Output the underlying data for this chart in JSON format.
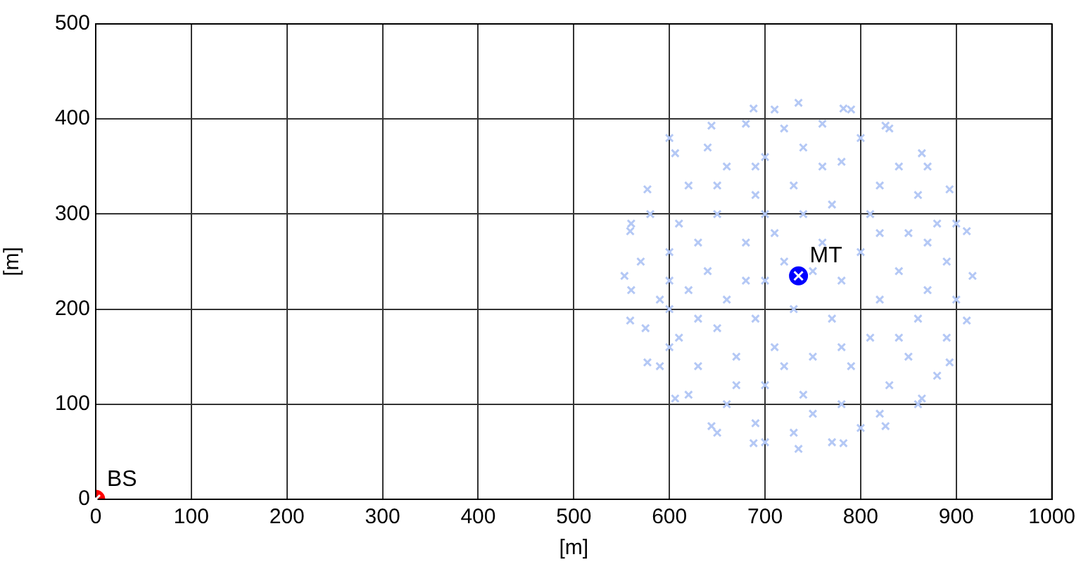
{
  "chart_data": {
    "type": "scatter",
    "xlabel": "[m]",
    "ylabel": "[m]",
    "xlim": [
      0,
      1000
    ],
    "ylim": [
      0,
      500
    ],
    "xticks": [
      0,
      100,
      200,
      300,
      400,
      500,
      600,
      700,
      800,
      900,
      1000
    ],
    "yticks": [
      0,
      100,
      200,
      300,
      400,
      500
    ],
    "grid": true,
    "legend": false,
    "series": [
      {
        "color": "#b4c8f5",
        "marker": "cross",
        "x": [
          917,
          911,
          893,
          864,
          826,
          782,
          735,
          688,
          644,
          606,
          577,
          559,
          553,
          559,
          577,
          606,
          644,
          688,
          735,
          782,
          826,
          864,
          893,
          911,
          600,
          640,
          680,
          720,
          760,
          800,
          840,
          620,
          660,
          700,
          740,
          780,
          820,
          860,
          880,
          580,
          610,
          650,
          690,
          730,
          770,
          810,
          850,
          890,
          570,
          600,
          640,
          680,
          710,
          760,
          800,
          840,
          870,
          900,
          560,
          590,
          620,
          660,
          700,
          780,
          820,
          860,
          890,
          575,
          610,
          650,
          690,
          730,
          770,
          810,
          850,
          880,
          590,
          630,
          670,
          710,
          750,
          790,
          830,
          860,
          620,
          660,
          700,
          740,
          780,
          820,
          650,
          690,
          730,
          770,
          800,
          720,
          750,
          700,
          650,
          830,
          600,
          630,
          680,
          760,
          790,
          710,
          600,
          840,
          870,
          560,
          900,
          740,
          820,
          670,
          750,
          700,
          870,
          630,
          780,
          720,
          600,
          690
        ],
        "values": [
          235,
          282,
          326,
          364,
          393,
          411,
          417,
          411,
          393,
          364,
          326,
          282,
          235,
          188,
          144,
          106,
          77,
          59,
          53,
          59,
          77,
          106,
          144,
          188,
          380,
          370,
          395,
          390,
          395,
          380,
          350,
          330,
          350,
          360,
          370,
          355,
          330,
          320,
          290,
          300,
          290,
          300,
          320,
          330,
          310,
          300,
          280,
          250,
          250,
          260,
          240,
          270,
          280,
          270,
          260,
          240,
          220,
          210,
          220,
          210,
          220,
          210,
          230,
          230,
          210,
          190,
          170,
          180,
          170,
          180,
          190,
          200,
          190,
          170,
          150,
          130,
          140,
          140,
          150,
          160,
          150,
          140,
          120,
          100,
          110,
          100,
          120,
          110,
          100,
          90,
          70,
          80,
          70,
          60,
          75,
          250,
          240,
          300,
          330,
          390,
          200,
          270,
          230,
          350,
          410,
          410,
          160,
          170,
          350,
          290,
          290,
          300,
          280,
          120,
          90,
          60,
          270,
          190,
          160,
          140,
          230,
          350
        ]
      },
      {
        "name": "BS",
        "color": "#ff0000",
        "marker": "circle",
        "x": [
          0
        ],
        "values": [
          0
        ]
      },
      {
        "name": "MT",
        "color": "#0000ff",
        "marker": "circle",
        "x": [
          735
        ],
        "values": [
          235
        ]
      }
    ]
  }
}
